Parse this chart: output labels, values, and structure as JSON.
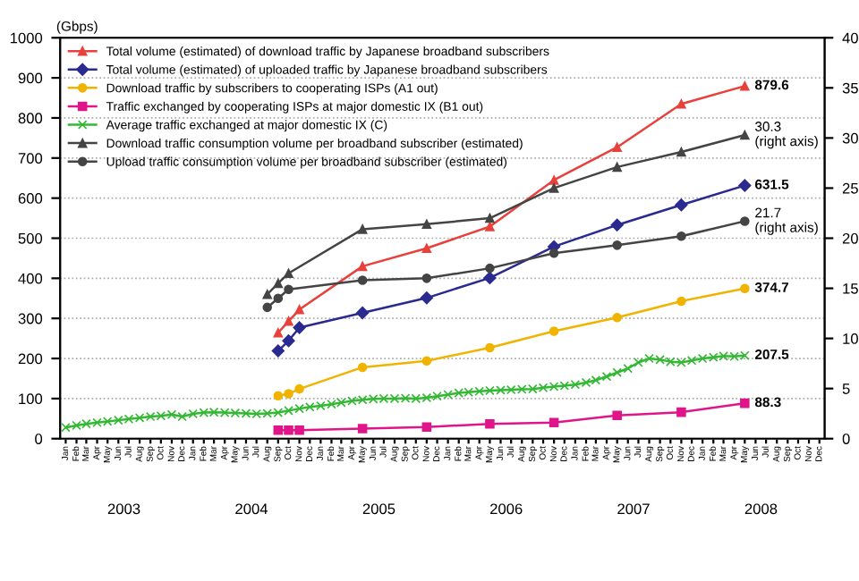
{
  "chart_data": {
    "type": "line",
    "ylabel": "(Gbps)",
    "xlim": [
      "2002-12-16",
      "2008-12-16"
    ],
    "xticks": [
      {
        "value": "2003-01",
        "label": "Jan"
      },
      {
        "value": "2003-02",
        "label": "Feb"
      },
      {
        "value": "2003-03",
        "label": "Mar"
      },
      {
        "value": "2003-04",
        "label": "Apr"
      },
      {
        "value": "2003-05",
        "label": "May"
      },
      {
        "value": "2003-06",
        "label": "Jun"
      },
      {
        "value": "2003-07",
        "label": "Jul"
      },
      {
        "value": "2003-08",
        "label": "Aug"
      },
      {
        "value": "2003-09",
        "label": "Sep"
      },
      {
        "value": "2003-10",
        "label": "Oct"
      },
      {
        "value": "2003-11",
        "label": "Nov"
      },
      {
        "value": "2003-12",
        "label": "Dec"
      },
      {
        "value": "2004-01",
        "label": "Jan"
      },
      {
        "value": "2004-02",
        "label": "Feb"
      },
      {
        "value": "2004-03",
        "label": "Mar"
      },
      {
        "value": "2004-04",
        "label": "Apr"
      },
      {
        "value": "2004-05",
        "label": "May"
      },
      {
        "value": "2004-06",
        "label": "Jun"
      },
      {
        "value": "2004-07",
        "label": "Jul"
      },
      {
        "value": "2004-08",
        "label": "Aug"
      },
      {
        "value": "2004-09",
        "label": "Sep"
      },
      {
        "value": "2004-10",
        "label": "Oct"
      },
      {
        "value": "2004-11",
        "label": "Nov"
      },
      {
        "value": "2004-12",
        "label": "Dec"
      },
      {
        "value": "2005-01",
        "label": "Jan"
      },
      {
        "value": "2005-02",
        "label": "Feb"
      },
      {
        "value": "2005-03",
        "label": "Mar"
      },
      {
        "value": "2005-04",
        "label": "Apr"
      },
      {
        "value": "2005-05",
        "label": "May"
      },
      {
        "value": "2005-06",
        "label": "Jun"
      },
      {
        "value": "2005-07",
        "label": "Jul"
      },
      {
        "value": "2005-08",
        "label": "Aug"
      },
      {
        "value": "2005-09",
        "label": "Sep"
      },
      {
        "value": "2005-10",
        "label": "Oct"
      },
      {
        "value": "2005-11",
        "label": "Nov"
      },
      {
        "value": "2005-12",
        "label": "Dec"
      },
      {
        "value": "2006-01",
        "label": "Jan"
      },
      {
        "value": "2006-02",
        "label": "Feb"
      },
      {
        "value": "2006-03",
        "label": "Mar"
      },
      {
        "value": "2006-04",
        "label": "Apr"
      },
      {
        "value": "2006-05",
        "label": "May"
      },
      {
        "value": "2006-06",
        "label": "Jun"
      },
      {
        "value": "2006-07",
        "label": "Jul"
      },
      {
        "value": "2006-08",
        "label": "Aug"
      },
      {
        "value": "2006-09",
        "label": "Sep"
      },
      {
        "value": "2006-10",
        "label": "Oct"
      },
      {
        "value": "2006-11",
        "label": "Nov"
      },
      {
        "value": "2006-12",
        "label": "Dec"
      },
      {
        "value": "2007-01",
        "label": "Jan"
      },
      {
        "value": "2007-02",
        "label": "Feb"
      },
      {
        "value": "2007-03",
        "label": "Mar"
      },
      {
        "value": "2007-04",
        "label": "Apr"
      },
      {
        "value": "2007-05",
        "label": "May"
      },
      {
        "value": "2007-06",
        "label": "Jun"
      },
      {
        "value": "2007-07",
        "label": "Jul"
      },
      {
        "value": "2007-08",
        "label": "Aug"
      },
      {
        "value": "2007-09",
        "label": "Sep"
      },
      {
        "value": "2007-10",
        "label": "Oct"
      },
      {
        "value": "2007-11",
        "label": "Nov"
      },
      {
        "value": "2007-12",
        "label": "Dec"
      },
      {
        "value": "2008-01",
        "label": "Jan"
      },
      {
        "value": "2008-02",
        "label": "Feb"
      },
      {
        "value": "2008-03",
        "label": "Mar"
      },
      {
        "value": "2008-04",
        "label": "Apr"
      },
      {
        "value": "2008-05",
        "label": "May"
      },
      {
        "value": "2008-06",
        "label": "Jun"
      },
      {
        "value": "2008-07",
        "label": "Jul"
      },
      {
        "value": "2008-08",
        "label": "Aug"
      },
      {
        "value": "2008-09",
        "label": "Sep"
      },
      {
        "value": "2008-10",
        "label": "Oct"
      },
      {
        "value": "2008-11",
        "label": "Nov"
      },
      {
        "value": "2008-12",
        "label": "Dec"
      }
    ],
    "ylim": [
      0,
      1000
    ],
    "yticks": [
      0,
      100,
      200,
      300,
      400,
      500,
      600,
      700,
      800,
      900,
      1000
    ],
    "y2lim": [
      0,
      40
    ],
    "y2ticks": [
      0,
      5,
      10,
      15,
      20,
      25,
      30,
      35,
      40
    ],
    "grid": "y",
    "legend": "top left",
    "series": [
      {
        "name": "Total volume (estimated) of download traffic by Japanese broadband subscribers",
        "color": "#e8413c",
        "marker": "triangle",
        "x": [
          "2004-09",
          "2004-10",
          "2004-11",
          "2005-05",
          "2005-11",
          "2006-05",
          "2006-11",
          "2007-05",
          "2007-11",
          "2008-05"
        ],
        "values": [
          264,
          293,
          322,
          430,
          475,
          529,
          645,
          727,
          835,
          879.6
        ]
      },
      {
        "name": "Total volume (estimated) of uploaded traffic by Japanese broadband subscribers",
        "color": "#2a2a90",
        "marker": "diamond",
        "x": [
          "2004-09",
          "2004-10",
          "2004-11",
          "2005-05",
          "2005-11",
          "2006-05",
          "2006-11",
          "2007-05",
          "2007-11",
          "2008-05"
        ],
        "values": [
          219,
          244,
          277,
          314,
          351,
          401,
          479,
          533,
          583,
          631.5
        ]
      },
      {
        "name": "Download traffic by subscribers to cooperating ISPs (A1 out)",
        "color": "#f0b400",
        "marker": "circle",
        "x": [
          "2004-09",
          "2004-10",
          "2004-11",
          "2005-05",
          "2005-11",
          "2006-05",
          "2006-11",
          "2007-05",
          "2007-11",
          "2008-05"
        ],
        "values": [
          107,
          112,
          124,
          178,
          194,
          227,
          268,
          302,
          343,
          374.7
        ]
      },
      {
        "name": "Traffic exchanged by cooperating ISPs at major domestic IX (B1 out)",
        "color": "#e0158a",
        "marker": "square",
        "x": [
          "2004-09",
          "2004-10",
          "2004-11",
          "2005-05",
          "2005-11",
          "2006-05",
          "2006-11",
          "2007-05",
          "2007-11",
          "2008-05"
        ],
        "values": [
          21,
          21,
          21,
          25,
          29,
          37,
          40,
          58,
          66,
          88.3
        ]
      },
      {
        "name": "Average traffic exchanged at major domestic IX (C)",
        "color": "#33b833",
        "marker": "cross",
        "x": [
          "2003-01",
          "2003-02",
          "2003-03",
          "2003-04",
          "2003-05",
          "2003-06",
          "2003-07",
          "2003-08",
          "2003-09",
          "2003-10",
          "2003-11",
          "2003-12",
          "2004-01",
          "2004-02",
          "2004-03",
          "2004-04",
          "2004-05",
          "2004-06",
          "2004-07",
          "2004-08",
          "2004-09",
          "2004-10",
          "2004-11",
          "2004-12",
          "2005-01",
          "2005-02",
          "2005-03",
          "2005-04",
          "2005-05",
          "2005-06",
          "2005-07",
          "2005-08",
          "2005-09",
          "2005-10",
          "2005-11",
          "2005-12",
          "2006-01",
          "2006-02",
          "2006-03",
          "2006-04",
          "2006-05",
          "2006-06",
          "2006-07",
          "2006-08",
          "2006-09",
          "2006-10",
          "2006-11",
          "2006-12",
          "2007-01",
          "2007-02",
          "2007-03",
          "2007-04",
          "2007-05",
          "2007-06",
          "2007-07",
          "2007-08",
          "2007-09",
          "2007-10",
          "2007-11",
          "2007-12",
          "2008-01",
          "2008-02",
          "2008-03",
          "2008-04",
          "2008-05"
        ],
        "values": [
          28,
          33,
          37,
          40,
          43,
          46,
          49,
          52,
          55,
          57,
          60,
          55,
          62,
          65,
          66,
          65,
          64,
          63,
          62,
          63,
          65,
          70,
          75,
          79,
          82,
          86,
          90,
          94,
          97,
          99,
          100,
          100,
          101,
          100,
          102,
          106,
          110,
          114,
          116,
          118,
          120,
          121,
          122,
          123,
          124,
          127,
          130,
          132,
          135,
          140,
          146,
          155,
          165,
          175,
          190,
          200,
          197,
          192,
          190,
          195,
          200,
          203,
          206,
          205,
          207.5
        ]
      },
      {
        "name": "Download traffic consumption volume per broadband subscriber (estimated)",
        "color": "#444444",
        "marker": "triangle",
        "axis": "y2",
        "x": [
          "2004-08",
          "2004-09",
          "2004-10",
          "2005-05",
          "2005-11",
          "2006-05",
          "2006-11",
          "2007-05",
          "2007-11",
          "2008-05"
        ],
        "values": [
          14.4,
          15.5,
          16.5,
          20.9,
          21.4,
          22.0,
          25.0,
          27.1,
          28.6,
          30.3
        ]
      },
      {
        "name": "Upload traffic consumption volume per broadband subscriber (estimated)",
        "color": "#444444",
        "marker": "circle",
        "axis": "y2",
        "x": [
          "2004-08",
          "2004-09",
          "2004-10",
          "2005-05",
          "2005-11",
          "2006-05",
          "2006-11",
          "2007-05",
          "2007-11",
          "2008-05"
        ],
        "values": [
          13.1,
          14.0,
          14.9,
          15.8,
          16.0,
          17.0,
          18.5,
          19.3,
          20.2,
          21.7
        ]
      }
    ],
    "annotations": [
      "2003",
      "2004",
      "2005",
      "2006",
      "2007",
      "2008",
      {
        "text": "879.6",
        "x": "2008-05",
        "y": 879.6
      },
      {
        "text": "631.5",
        "x": "2008-05",
        "y": 631.5
      },
      {
        "text": "374.7",
        "x": "2008-05",
        "y": 374.7
      },
      {
        "text": "207.5",
        "x": "2008-05",
        "y": 207.5
      },
      {
        "text": "88.3",
        "x": "2008-05",
        "y": 88.3
      },
      {
        "text": "30.3\n(right axis)",
        "x": "2008-05",
        "y": 757.5
      },
      {
        "text": "21.7\n(right axis)",
        "x": "2008-05",
        "y": 542.5
      }
    ]
  }
}
